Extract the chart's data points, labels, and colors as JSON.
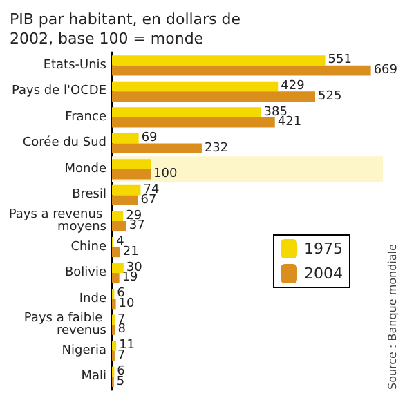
{
  "chart_data": {
    "type": "bar",
    "orientation": "horizontal",
    "title": "PIB par habitant, en dollars de 2002, base 100 = monde",
    "categories": [
      "Etats-Unis",
      "Pays de l'OCDE",
      "France",
      "Corée du Sud",
      "Monde",
      "Bresil",
      "Pays a revenus moyens",
      "Chine",
      "Bolivie",
      "Inde",
      "Pays a faible revenus",
      "Nigeria",
      "Mali"
    ],
    "series": [
      {
        "name": "1975",
        "color": "#f5d800",
        "values": [
          551,
          429,
          385,
          69,
          100,
          74,
          29,
          4,
          30,
          6,
          7,
          11,
          6
        ],
        "value_labels": [
          "551",
          "429",
          "385",
          "69",
          null,
          "74",
          "29",
          "4",
          "30",
          "6",
          "7",
          "11",
          "6"
        ]
      },
      {
        "name": "2004",
        "color": "#d98e1e",
        "values": [
          669,
          525,
          421,
          232,
          100,
          67,
          37,
          21,
          19,
          10,
          8,
          7,
          5
        ],
        "value_labels": [
          "669",
          "525",
          "421",
          "232",
          "100",
          "67",
          "37",
          "21",
          "19",
          "10",
          "8",
          "7",
          "5"
        ]
      }
    ],
    "bands": [
      {
        "axis": "y",
        "from": "Monde",
        "to": "Monde",
        "color": "#fdf6c8"
      }
    ],
    "legend": "right",
    "grid": false,
    "annotations": [
      "Source : Banque mondiale"
    ]
  }
}
